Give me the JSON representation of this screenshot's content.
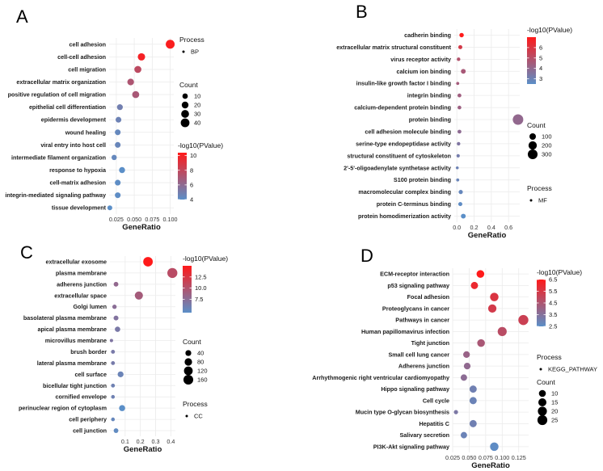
{
  "chart_data": [
    {
      "type": "scatter",
      "panel": "A",
      "xlabel": "GeneRatio",
      "xlim": [
        0.015,
        0.105
      ],
      "xticks": [
        "0.025",
        "0.050",
        "0.075",
        "0.100"
      ],
      "xtickvals": [
        0.025,
        0.05,
        0.075,
        0.1
      ],
      "categories": [
        "cell adhesion",
        "cell-cell adhesion",
        "cell migration",
        "extracellular matrix organization",
        "positive regulation of cell migration",
        "epithelial cell differentiation",
        "epidermis development",
        "wound healing",
        "viral entry into host cell",
        "intermediate filament organization",
        "response to hypoxia",
        "cell-matrix adhesion",
        "integrin-mediated signaling pathway",
        "tissue development"
      ],
      "gene_ratio": [
        0.1,
        0.06,
        0.055,
        0.045,
        0.052,
        0.03,
        0.028,
        0.027,
        0.027,
        0.022,
        0.033,
        0.027,
        0.027,
        0.016
      ],
      "count": [
        42,
        25,
        22,
        19,
        22,
        13,
        12,
        12,
        12,
        9,
        14,
        12,
        12,
        7
      ],
      "log10p": [
        10.2,
        10.0,
        7.8,
        7.2,
        7.0,
        4.9,
        4.7,
        4.4,
        4.5,
        4.4,
        4.0,
        4.1,
        4.1,
        4.0
      ],
      "legend_process_title": "Process",
      "legend_process": "BP",
      "legend_count_title": "Count",
      "legend_count": [
        "10",
        "20",
        "30",
        "40"
      ],
      "legend_count_vals": [
        10,
        20,
        30,
        40
      ],
      "legend_color_title": "-log10(PValue)",
      "legend_color_ticks": [
        "10",
        "8",
        "6",
        "4"
      ],
      "legend_color_vals": [
        10,
        8,
        6,
        4
      ],
      "color_range": [
        4,
        10.4
      ]
    },
    {
      "type": "scatter",
      "panel": "B",
      "xlabel": "GeneRatio",
      "xlim": [
        -0.03,
        0.73
      ],
      "xticks": [
        "0.0",
        "0.2",
        "0.4",
        "0.6"
      ],
      "xtickvals": [
        0.0,
        0.2,
        0.4,
        0.6
      ],
      "categories": [
        "cadherin binding",
        "extracellular matrix structural constituent",
        "virus receptor activity",
        "calcium ion binding",
        "insulin-like growth factor I binding",
        "integrin binding",
        "calcium-dependent protein binding",
        "protein binding",
        "cell adhesion molecule binding",
        "serine-type endopeptidase activity",
        "structural constituent of cytoskeleton",
        "2'-5'-oligoadenylate synthetase activity",
        "S100 protein binding",
        "macromolecular complex binding",
        "protein C-terminus binding",
        "protein homodimerization activity"
      ],
      "gene_ratio": [
        0.055,
        0.04,
        0.02,
        0.075,
        0.01,
        0.03,
        0.03,
        0.71,
        0.03,
        0.02,
        0.015,
        0.005,
        0.01,
        0.045,
        0.04,
        0.075
      ],
      "count": [
        30,
        22,
        12,
        40,
        6,
        18,
        16,
        360,
        18,
        12,
        10,
        4,
        6,
        25,
        22,
        40
      ],
      "log10p": [
        7.0,
        5.8,
        4.9,
        4.6,
        4.5,
        4.4,
        4.3,
        4.0,
        3.9,
        3.5,
        3.2,
        3.0,
        2.9,
        2.8,
        2.6,
        2.5
      ],
      "legend_process_title": "Process",
      "legend_process": "MF",
      "legend_count_title": "Count",
      "legend_count": [
        "100",
        "200",
        "300"
      ],
      "legend_count_vals": [
        100,
        200,
        300
      ],
      "legend_color_title": "-log10(PValue)",
      "legend_color_ticks": [
        "6",
        "5",
        "4",
        "3"
      ],
      "legend_color_vals": [
        6,
        5,
        4,
        3
      ],
      "color_range": [
        2.5,
        7.0
      ]
    },
    {
      "type": "scatter",
      "panel": "C",
      "xlabel": "GeneRatio",
      "xlim": [
        0.0,
        0.43
      ],
      "xticks": [
        "0.1",
        "0.2",
        "0.3",
        "0.4"
      ],
      "xtickvals": [
        0.1,
        0.2,
        0.3,
        0.4
      ],
      "categories": [
        "extracellular exosome",
        "plasma membrane",
        "adherens junction",
        "extracellular space",
        "Golgi lumen",
        "basolateral plasma membrane",
        "apical plasma membrane",
        "microvillus membrane",
        "brush border",
        "lateral plasma membrane",
        "cell surface",
        "bicellular tight junction",
        "cornified envelope",
        "perinuclear region of cytoplasm",
        "cell periphery",
        "cell junction"
      ],
      "gene_ratio": [
        0.25,
        0.41,
        0.04,
        0.19,
        0.03,
        0.04,
        0.05,
        0.01,
        0.02,
        0.02,
        0.07,
        0.02,
        0.02,
        0.08,
        0.02,
        0.04
      ],
      "count": [
        150,
        170,
        20,
        100,
        15,
        22,
        30,
        5,
        10,
        10,
        40,
        10,
        8,
        45,
        8,
        20
      ],
      "log10p": [
        15.0,
        10.5,
        8.0,
        9.2,
        7.5,
        7.0,
        6.5,
        6.8,
        6.4,
        6.3,
        5.5,
        5.8,
        5.8,
        4.5,
        5.2,
        4.9
      ],
      "legend_process_title": "Process",
      "legend_process": "CC",
      "legend_count_title": "Count",
      "legend_count": [
        "40",
        "80",
        "120",
        "160"
      ],
      "legend_count_vals": [
        40,
        80,
        120,
        160
      ],
      "legend_color_title": "-log10(PValue)",
      "legend_color_ticks": [
        "12.5",
        "10.0",
        "7.5"
      ],
      "legend_color_vals": [
        12.5,
        10.0,
        7.5
      ],
      "color_range": [
        4.5,
        15.0
      ]
    },
    {
      "type": "scatter",
      "panel": "D",
      "xlabel": "GeneRatio",
      "xlim": [
        0.025,
        0.14
      ],
      "xticks": [
        "0.025",
        "0.050",
        "0.075",
        "0.100",
        "0.125"
      ],
      "xtickvals": [
        0.025,
        0.05,
        0.075,
        0.1,
        0.125
      ],
      "categories": [
        "ECM-receptor interaction",
        "p53 signaling pathway",
        "Focal adhesion",
        "Proteoglycans in cancer",
        "Pathways in cancer",
        "Human papillomavirus infection",
        "Tight junction",
        "Small cell lung cancer",
        "Adherens junction",
        "Arrhythmogenic right ventricular cardiomyopathy",
        "Hippo signaling pathway",
        "Cell cycle",
        "Mucin type O-glycan biosynthesis",
        "Hepatitis C",
        "Salivary secretion",
        "PI3K-Akt signaling pathway"
      ],
      "gene_ratio": [
        0.067,
        0.058,
        0.088,
        0.085,
        0.132,
        0.1,
        0.068,
        0.046,
        0.047,
        0.042,
        0.056,
        0.056,
        0.03,
        0.056,
        0.042,
        0.088
      ],
      "count": [
        13,
        11,
        17,
        16,
        26,
        20,
        13,
        9,
        9,
        8,
        11,
        11,
        2,
        11,
        8,
        17
      ],
      "log10p": [
        6.5,
        6.0,
        5.6,
        5.4,
        5.2,
        4.8,
        4.4,
        4.0,
        3.8,
        3.7,
        3.0,
        2.9,
        3.3,
        3.0,
        2.9,
        2.6
      ],
      "legend_process_title": "Process",
      "legend_process": "KEGG_PATHWAY",
      "legend_count_title": "Count",
      "legend_count": [
        "10",
        "15",
        "20",
        "25"
      ],
      "legend_count_vals": [
        10,
        15,
        20,
        25
      ],
      "legend_color_title": "-log10(PValue)",
      "legend_color_ticks": [
        "6.5",
        "5.5",
        "4.5",
        "3.5",
        "2.5"
      ],
      "legend_color_vals": [
        6.5,
        5.5,
        4.5,
        3.5,
        2.5
      ],
      "color_range": [
        2.5,
        6.5
      ]
    }
  ],
  "colors": {
    "high": "#ff1a1a",
    "low": "#5b8fc8",
    "grid": "#ebebeb",
    "panel_bg": "#ffffff"
  }
}
